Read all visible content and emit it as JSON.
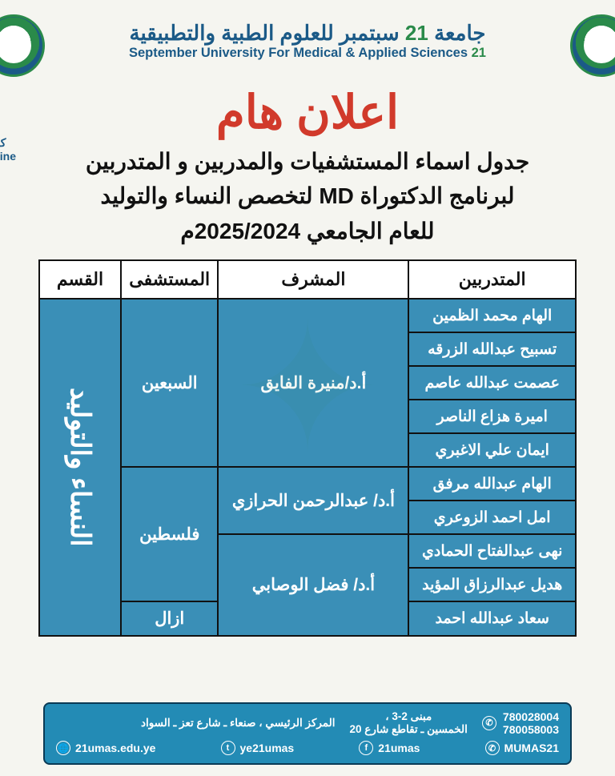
{
  "header": {
    "uni_ar_pre": "جامعة ",
    "uni_ar_accent": "21",
    "uni_ar_post": " سبتمبر للعلوم الطبية والتطبيقية",
    "uni_en_accent": "21 ",
    "uni_en_post": "September University For Medical & Applied Sciences"
  },
  "side_label_line1": "كلـ",
  "side_label_line2": "cine",
  "announce": "اعلان هام",
  "subtitle_line1": "جدول اسماء المستشفيات والمدربين و المتدربين",
  "subtitle_line2": "لبرنامج الدكتوراة MD لتخصص النساء والتوليد",
  "subtitle_line3": "للعام الجامعي 2025/2024م",
  "table": {
    "columns": [
      "المتدربين",
      "المشرف",
      "المستشفى",
      "القسم"
    ],
    "department": "النساء والتوليد",
    "groups": [
      {
        "hospital": "السبعين",
        "supervisor": "أ.د/منيرة الفايق",
        "trainees": [
          "الهام محمد الظمين",
          "تسبيح عبدالله الزرقه",
          "عصمت عبدالله عاصم",
          "اميرة هزاع الناصر",
          "ايمان علي الاغبري"
        ]
      },
      {
        "hospital": "فلسطين",
        "supervisors": [
          {
            "name": "أ.د/ عبدالرحمن الحرازي",
            "span": 2
          },
          {
            "name": "أ.د/ فضل الوصابي",
            "span": 2
          }
        ],
        "trainees": [
          "الهام عبدالله مرفق",
          "امل احمد الزوعري",
          "نهى عبدالفتاح الحمادي",
          "هديل عبدالرزاق المؤيد"
        ]
      },
      {
        "hospital": "ازال",
        "trainees": [
          "سعاد عبدالله احمد"
        ]
      }
    ],
    "colors": {
      "cell_bg": "#3a8fb7",
      "cell_fg": "#ffffff",
      "border": "#111111",
      "header_bg": "#ffffff",
      "header_fg": "#111111"
    }
  },
  "footer": {
    "building": "مبنى 2-3 ،",
    "address": "المركز الرئيسي ، صنعاء ـ شارع تعز ـ السواد",
    "address2": "الخمسين ـ تقاطع شارع 20",
    "phone1": "780028004",
    "phone2": "780058003",
    "socials": {
      "website": "21umas.edu.ye",
      "twitter": "ye21umas",
      "facebook": "21umas",
      "whatsapp": "MUMAS21"
    }
  }
}
